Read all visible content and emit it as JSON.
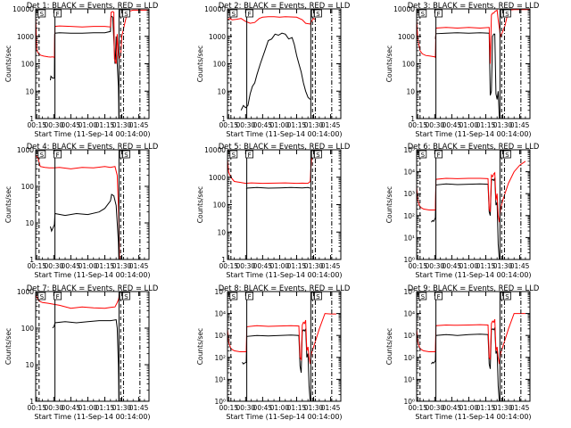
{
  "figure": {
    "xlabel": "Start Time (11-Sep-14 00:14:00)",
    "ylabel": "Counts/sec",
    "x_tick_labels": [
      "00:15",
      "00:30",
      "00:45",
      "01:00",
      "01:15",
      "01:30",
      "01:45"
    ],
    "x_tick_minutes": [
      15,
      30,
      45,
      60,
      75,
      90,
      105
    ],
    "x_range_minutes": [
      14,
      114
    ],
    "colors": {
      "events": "#000000",
      "lld": "#ff0000",
      "axes": "#000000",
      "background": "#ffffff"
    },
    "vlines": [
      {
        "minute": 17,
        "style": "dash",
        "marker": "S"
      },
      {
        "minute": 31,
        "style": "solid",
        "marker": "F"
      },
      {
        "minute": 87.5,
        "style": "solid",
        "marker": ""
      },
      {
        "minute": 89,
        "style": "dash",
        "marker": "E"
      },
      {
        "minute": 91.5,
        "style": "dashdot",
        "marker": "S"
      },
      {
        "minute": 106,
        "style": "dashdot",
        "marker": ""
      }
    ]
  },
  "chart_data": [
    {
      "type": "line",
      "title": "Det 1: BLACK = Events, RED = LLD",
      "log_scale": true,
      "ylim": [
        1,
        10000
      ],
      "y_tick_labels": [
        "1",
        "10",
        "100",
        "1000",
        "10000"
      ],
      "y_tick_values": [
        1,
        10,
        100,
        1000,
        10000
      ],
      "series": [
        {
          "name": "Events",
          "color": "#000000",
          "x": [
            27,
            27.5,
            29,
            30.5,
            30.8,
            31,
            35,
            45,
            55,
            65,
            75,
            80,
            80.5,
            82,
            84,
            84.5,
            85,
            86,
            87,
            87.5
          ],
          "y": [
            25,
            35,
            30,
            30,
            1200,
            1300,
            1350,
            1300,
            1300,
            1350,
            1350,
            1500,
            5500,
            5000,
            100,
            200,
            1000,
            100,
            15,
            1
          ]
        },
        {
          "name": "LLD",
          "color": "#ff0000",
          "x": [
            14,
            15,
            17,
            19,
            21,
            25,
            27,
            29,
            30.5,
            31,
            35,
            45,
            55,
            65,
            75,
            80,
            80.5,
            82,
            83,
            83.5,
            85,
            86,
            87,
            87.5,
            89,
            90,
            95,
            100,
            105,
            110,
            114
          ],
          "y": [
            5000,
            300,
            220,
            200,
            190,
            180,
            175,
            180,
            170,
            2300,
            2400,
            2300,
            2200,
            2300,
            2300,
            2200,
            7500,
            8000,
            7500,
            150,
            100,
            1200,
            200,
            150,
            200,
            1000,
            8000,
            9000,
            9000,
            9000,
            9000
          ]
        }
      ]
    },
    {
      "type": "line",
      "title": "Det 2: BLACK = Events, RED = LLD",
      "log_scale": true,
      "ylim": [
        1,
        10000
      ],
      "y_tick_labels": [
        "1",
        "10",
        "100",
        "1000",
        "10000"
      ],
      "y_tick_values": [
        1,
        10,
        100,
        1000,
        10000
      ],
      "series": [
        {
          "name": "Events",
          "color": "#000000",
          "x": [
            26,
            28,
            30,
            32,
            34,
            36,
            38,
            40,
            43,
            47,
            50,
            53,
            56,
            59,
            62,
            65,
            68,
            71,
            73,
            75,
            77,
            79,
            81,
            83,
            85,
            87
          ],
          "y": [
            2,
            3,
            2.5,
            3,
            8,
            15,
            20,
            40,
            100,
            300,
            700,
            800,
            1200,
            1100,
            1300,
            1200,
            800,
            900,
            500,
            200,
            100,
            50,
            20,
            10,
            6,
            5
          ]
        },
        {
          "name": "LLD",
          "color": "#ff0000",
          "x": [
            14,
            16,
            18,
            22,
            26,
            30,
            34,
            38,
            42,
            45,
            50,
            55,
            60,
            65,
            70,
            75,
            80,
            83,
            87,
            88,
            90,
            92
          ],
          "y": [
            4000,
            4500,
            4000,
            4200,
            4500,
            3500,
            3000,
            3200,
            4500,
            5000,
            5200,
            5200,
            5000,
            5200,
            5100,
            5000,
            4000,
            3000,
            2800,
            3500,
            4500,
            4000
          ]
        }
      ]
    },
    {
      "type": "line",
      "title": "Det 3: BLACK = Events, RED = LLD",
      "log_scale": true,
      "ylim": [
        1,
        10000
      ],
      "y_tick_labels": [
        "1",
        "10",
        "100",
        "1000",
        "10000"
      ],
      "y_tick_values": [
        1,
        10,
        100,
        1000,
        10000
      ],
      "series": [
        {
          "name": "Events",
          "color": "#000000",
          "x": [
            30.5,
            31,
            40,
            50,
            60,
            70,
            78,
            79,
            80,
            81,
            82,
            83,
            84,
            85,
            86,
            87
          ],
          "y": [
            800,
            1250,
            1300,
            1350,
            1300,
            1350,
            1300,
            7,
            10,
            1000,
            1200,
            1200,
            8,
            5,
            10,
            1
          ]
        },
        {
          "name": "LLD",
          "color": "#ff0000",
          "x": [
            14,
            15,
            17,
            19,
            22,
            26,
            30,
            30.5,
            31,
            40,
            50,
            60,
            70,
            78,
            79,
            80,
            81,
            82,
            83,
            84,
            85,
            86,
            87,
            88,
            90,
            92,
            95,
            100,
            110,
            114
          ],
          "y": [
            4000,
            800,
            300,
            230,
            200,
            190,
            180,
            170,
            2000,
            2100,
            2000,
            2100,
            2000,
            2100,
            100,
            6000,
            7000,
            7000,
            8000,
            8500,
            9000,
            4000,
            2000,
            1000,
            1500,
            2500,
            9000,
            9500,
            9500,
            9500
          ]
        }
      ]
    },
    {
      "type": "line",
      "title": "Det 4: BLACK = Events, RED = LLD",
      "log_scale": true,
      "ylim": [
        1,
        1000
      ],
      "y_tick_labels": [
        "1",
        "10",
        "100",
        "1000"
      ],
      "y_tick_values": [
        1,
        10,
        100,
        1000
      ],
      "series": [
        {
          "name": "Events",
          "color": "#000000",
          "x": [
            27,
            28,
            29,
            30.5,
            31,
            40,
            50,
            60,
            70,
            75,
            80,
            81,
            83,
            85,
            86,
            87,
            87.5
          ],
          "y": [
            8,
            6,
            7,
            9,
            18,
            16,
            18,
            17,
            20,
            25,
            40,
            60,
            55,
            30,
            10,
            3,
            1
          ]
        },
        {
          "name": "LLD",
          "color": "#ff0000",
          "x": [
            14,
            16,
            18,
            22,
            26,
            30,
            35,
            45,
            55,
            65,
            75,
            80,
            84,
            86,
            87,
            87.5,
            88
          ],
          "y": [
            700,
            600,
            350,
            330,
            320,
            320,
            330,
            300,
            330,
            320,
            350,
            330,
            350,
            200,
            30,
            10,
            1
          ]
        }
      ]
    },
    {
      "type": "line",
      "title": "Det 5: BLACK = Events, RED = LLD",
      "log_scale": true,
      "ylim": [
        1,
        10000
      ],
      "y_tick_labels": [
        "1",
        "10",
        "100",
        "1000",
        "10000"
      ],
      "y_tick_values": [
        1,
        10,
        100,
        1000,
        10000
      ],
      "series": [
        {
          "name": "Events",
          "color": "#000000",
          "x": [
            30.5,
            31,
            40,
            50,
            60,
            70,
            80,
            85,
            87
          ],
          "y": [
            380,
            400,
            420,
            400,
            410,
            420,
            410,
            420,
            400
          ]
        },
        {
          "name": "LLD",
          "color": "#ff0000",
          "x": [
            14,
            15,
            17,
            20,
            25,
            30,
            35,
            45,
            55,
            65,
            75,
            80,
            85,
            87,
            88,
            89,
            90,
            91
          ],
          "y": [
            4500,
            1500,
            1000,
            700,
            650,
            600,
            620,
            600,
            610,
            620,
            600,
            610,
            600,
            700,
            4000,
            8000,
            10000,
            10000
          ]
        }
      ]
    },
    {
      "type": "line",
      "title": "Det 6: BLACK = Events, RED = LLD",
      "log_scale": true,
      "ylim": [
        1,
        100000
      ],
      "y_tick_labels": [
        "10⁰",
        "10¹",
        "10²",
        "10³",
        "10⁴",
        "10⁵"
      ],
      "y_tick_values": [
        1,
        10,
        100,
        1000,
        10000,
        100000
      ],
      "series": [
        {
          "name": "Events",
          "color": "#000000",
          "x": [
            27,
            28,
            29,
            30.5,
            31,
            40,
            50,
            60,
            70,
            77,
            78,
            79,
            80,
            81,
            82,
            83,
            84,
            85,
            86,
            87
          ],
          "y": [
            50,
            60,
            55,
            80,
            2500,
            2800,
            2600,
            2700,
            2800,
            2700,
            150,
            100,
            4000,
            4500,
            4000,
            5000,
            300,
            400,
            5,
            1
          ]
        },
        {
          "name": "LLD",
          "color": "#ff0000",
          "x": [
            14,
            15,
            17,
            20,
            25,
            30.5,
            31,
            40,
            50,
            60,
            70,
            77,
            78,
            79,
            80,
            81,
            82,
            83,
            84,
            85,
            86,
            87,
            88,
            90,
            95,
            100,
            105,
            110
          ],
          "y": [
            2000,
            500,
            250,
            200,
            180,
            180,
            4500,
            5000,
            4800,
            5000,
            5000,
            4800,
            200,
            150,
            7000,
            6000,
            8000,
            9000,
            500,
            1000,
            100,
            50,
            200,
            500,
            3000,
            10000,
            20000,
            30000
          ]
        }
      ]
    },
    {
      "type": "line",
      "title": "Det 7: BLACK = Events, RED = LLD",
      "log_scale": true,
      "ylim": [
        1,
        1000
      ],
      "y_tick_labels": [
        "1",
        "10",
        "100",
        "1000"
      ],
      "y_tick_values": [
        1,
        10,
        100,
        1000
      ],
      "series": [
        {
          "name": "Events",
          "color": "#000000",
          "x": [
            29,
            30,
            30.5,
            31,
            40,
            50,
            60,
            70,
            80,
            85,
            86,
            87,
            87.5
          ],
          "y": [
            100,
            110,
            120,
            140,
            150,
            140,
            150,
            160,
            160,
            170,
            100,
            10,
            1
          ]
        },
        {
          "name": "LLD",
          "color": "#ff0000",
          "x": [
            14,
            15,
            17,
            20,
            25,
            30,
            35,
            45,
            55,
            65,
            75,
            80,
            84,
            86,
            87,
            88,
            89
          ],
          "y": [
            800,
            700,
            550,
            500,
            480,
            450,
            420,
            350,
            380,
            360,
            350,
            370,
            380,
            500,
            600,
            800,
            900
          ]
        }
      ]
    },
    {
      "type": "line",
      "title": "Det 8: BLACK = Events, RED = LLD",
      "log_scale": true,
      "ylim": [
        1,
        100000
      ],
      "y_tick_labels": [
        "10⁰",
        "10¹",
        "10²",
        "10³",
        "10⁴",
        "10⁵"
      ],
      "y_tick_values": [
        1,
        10,
        100,
        1000,
        10000,
        100000
      ],
      "series": [
        {
          "name": "Events",
          "color": "#000000",
          "x": [
            27,
            28,
            29,
            30.5,
            31,
            40,
            50,
            60,
            70,
            77,
            78,
            79,
            80,
            81,
            82,
            83,
            84,
            85,
            86,
            87
          ],
          "y": [
            60,
            50,
            55,
            60,
            900,
            1000,
            950,
            1000,
            1050,
            1000,
            40,
            20,
            1500,
            1800,
            1600,
            2000,
            100,
            150,
            5,
            1
          ]
        },
        {
          "name": "LLD",
          "color": "#ff0000",
          "x": [
            14,
            15,
            17,
            20,
            25,
            30.5,
            31,
            40,
            50,
            60,
            70,
            77,
            78,
            79,
            80,
            81,
            82,
            83,
            84,
            85,
            86,
            87,
            88,
            90,
            95,
            100,
            105,
            110
          ],
          "y": [
            2000,
            500,
            250,
            200,
            180,
            180,
            2500,
            2800,
            2600,
            2700,
            2800,
            2700,
            100,
            80,
            3000,
            4000,
            3500,
            5000,
            200,
            300,
            100,
            50,
            150,
            300,
            2000,
            10000,
            9500,
            9500
          ]
        }
      ]
    },
    {
      "type": "line",
      "title": "Det 9: BLACK = Events, RED = LLD",
      "log_scale": true,
      "ylim": [
        1,
        100000
      ],
      "y_tick_labels": [
        "10⁰",
        "10¹",
        "10²",
        "10³",
        "10⁴",
        "10⁵"
      ],
      "y_tick_values": [
        1,
        10,
        100,
        1000,
        10000,
        100000
      ],
      "series": [
        {
          "name": "Events",
          "color": "#000000",
          "x": [
            27,
            28,
            29,
            30.5,
            31,
            40,
            50,
            60,
            70,
            77,
            78,
            79,
            80,
            81,
            82,
            83,
            84,
            85,
            86,
            87
          ],
          "y": [
            50,
            60,
            55,
            70,
            1000,
            1100,
            1000,
            1100,
            1150,
            1100,
            50,
            30,
            1800,
            2000,
            1800,
            2200,
            150,
            200,
            5,
            1
          ]
        },
        {
          "name": "LLD",
          "color": "#ff0000",
          "x": [
            14,
            15,
            17,
            20,
            25,
            30.5,
            31,
            40,
            50,
            60,
            70,
            77,
            78,
            79,
            80,
            81,
            82,
            83,
            84,
            85,
            86,
            87,
            88,
            90,
            95,
            100,
            105,
            110
          ],
          "y": [
            2000,
            500,
            250,
            200,
            180,
            180,
            2800,
            3000,
            2900,
            3000,
            3100,
            3000,
            100,
            80,
            3500,
            4500,
            4000,
            5500,
            200,
            300,
            100,
            50,
            150,
            300,
            2000,
            10000,
            10000,
            10000
          ]
        }
      ]
    }
  ]
}
